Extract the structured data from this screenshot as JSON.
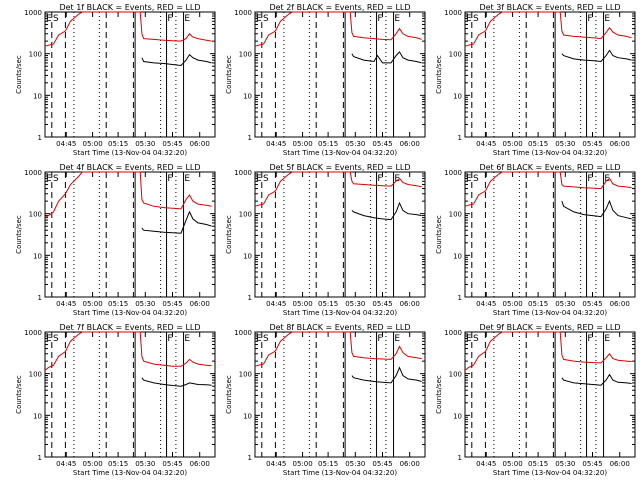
{
  "colors": {
    "events": "#000000",
    "lld": "#e00000",
    "axes": "#000000",
    "background": "#ffffff"
  },
  "shared": {
    "ylabel": "Counts/sec",
    "xlabel": "Start Time (13-Nov-04 04:32:20)",
    "x_ticks": [
      "04:45",
      "05:00",
      "05:15",
      "05:30",
      "05:45",
      "06:00"
    ],
    "y_ticks": [
      "1",
      "10",
      "100",
      "1000"
    ],
    "markers": {
      "E": "E",
      "S": "S",
      "F": "F"
    }
  },
  "chart_data": [
    {
      "type": "line",
      "title": "Det 1f BLACK = Events, RED = LLD",
      "yscale": "log",
      "ylim": [
        1,
        1000
      ],
      "series": [
        {
          "x": [
            0,
            0.02,
            0.05,
            0.08,
            0.12,
            0.15,
            0.2,
            0.22,
            0.3,
            0.45,
            0.56,
            0.57,
            0.58,
            0.64,
            0.7,
            0.75,
            0.8,
            0.83,
            0.85,
            0.87,
            0.9,
            0.95,
            0.98
          ],
          "values": [
            150,
            160,
            170,
            280,
            350,
            600,
            900,
            1000,
            1000,
            1000,
            1000,
            300,
            230,
            220,
            210,
            205,
            200,
            230,
            300,
            250,
            230,
            210,
            200
          ]
        },
        {
          "x": [
            0.57,
            0.58,
            0.64,
            0.7,
            0.75,
            0.8,
            0.83,
            0.85,
            0.87,
            0.9,
            0.95,
            0.98
          ],
          "values": [
            80,
            65,
            60,
            58,
            55,
            52,
            70,
            95,
            80,
            70,
            65,
            60
          ]
        }
      ]
    },
    {
      "type": "line",
      "title": "Det 2f BLACK = Events, RED = LLD",
      "yscale": "log",
      "ylim": [
        1,
        1000
      ],
      "series": [
        {
          "x": [
            0,
            0.02,
            0.05,
            0.08,
            0.12,
            0.15,
            0.2,
            0.22,
            0.3,
            0.45,
            0.56,
            0.57,
            0.58,
            0.64,
            0.7,
            0.75,
            0.8,
            0.83,
            0.85,
            0.87,
            0.9,
            0.95,
            0.98
          ],
          "values": [
            150,
            160,
            170,
            280,
            350,
            600,
            900,
            1000,
            1000,
            1000,
            1000,
            320,
            260,
            240,
            230,
            220,
            215,
            300,
            400,
            300,
            260,
            240,
            220
          ]
        },
        {
          "x": [
            0.57,
            0.58,
            0.64,
            0.7,
            0.72,
            0.75,
            0.8,
            0.83,
            0.85,
            0.87,
            0.9,
            0.95,
            0.98
          ],
          "values": [
            100,
            85,
            70,
            65,
            90,
            60,
            60,
            90,
            110,
            80,
            70,
            65,
            60
          ]
        }
      ]
    },
    {
      "type": "line",
      "title": "Det 3f BLACK = Events, RED = LLD",
      "yscale": "log",
      "ylim": [
        1,
        1000
      ],
      "series": [
        {
          "x": [
            0,
            0.02,
            0.05,
            0.08,
            0.12,
            0.15,
            0.2,
            0.22,
            0.3,
            0.45,
            0.56,
            0.57,
            0.58,
            0.64,
            0.7,
            0.75,
            0.8,
            0.83,
            0.85,
            0.87,
            0.9,
            0.95,
            0.98
          ],
          "values": [
            150,
            160,
            170,
            280,
            350,
            600,
            900,
            1000,
            1000,
            1000,
            1000,
            350,
            280,
            260,
            250,
            240,
            230,
            320,
            420,
            330,
            280,
            260,
            240
          ]
        },
        {
          "x": [
            0.57,
            0.58,
            0.64,
            0.7,
            0.75,
            0.8,
            0.83,
            0.85,
            0.87,
            0.9,
            0.95,
            0.98
          ],
          "values": [
            100,
            90,
            75,
            70,
            68,
            65,
            90,
            120,
            90,
            80,
            75,
            70
          ]
        }
      ]
    },
    {
      "type": "line",
      "title": "Det 4f BLACK = Events, RED = LLD",
      "yscale": "log",
      "ylim": [
        1,
        1000
      ],
      "series": [
        {
          "x": [
            0,
            0.02,
            0.05,
            0.08,
            0.12,
            0.15,
            0.2,
            0.22,
            0.3,
            0.45,
            0.56,
            0.57,
            0.58,
            0.64,
            0.7,
            0.75,
            0.8,
            0.83,
            0.85,
            0.87,
            0.9,
            0.95,
            0.98
          ],
          "values": [
            80,
            90,
            110,
            200,
            300,
            500,
            800,
            1000,
            1000,
            1000,
            1000,
            220,
            180,
            150,
            140,
            135,
            130,
            220,
            280,
            200,
            170,
            160,
            150
          ]
        },
        {
          "x": [
            0.57,
            0.58,
            0.64,
            0.7,
            0.75,
            0.8,
            0.83,
            0.85,
            0.87,
            0.9,
            0.95,
            0.98
          ],
          "values": [
            45,
            40,
            38,
            36,
            35,
            34,
            70,
            110,
            75,
            60,
            55,
            50
          ]
        }
      ]
    },
    {
      "type": "line",
      "title": "Det 5f BLACK = Events, RED = LLD",
      "yscale": "log",
      "ylim": [
        1,
        1000
      ],
      "series": [
        {
          "x": [
            0,
            0.02,
            0.05,
            0.08,
            0.12,
            0.15,
            0.2,
            0.22,
            0.3,
            0.45,
            0.56,
            0.57,
            0.58,
            0.64,
            0.7,
            0.75,
            0.8,
            0.83,
            0.85,
            0.87,
            0.9,
            0.95,
            0.98
          ],
          "values": [
            150,
            160,
            170,
            280,
            350,
            600,
            900,
            1000,
            1000,
            1000,
            1000,
            600,
            520,
            500,
            480,
            470,
            460,
            600,
            700,
            560,
            500,
            470,
            440
          ]
        },
        {
          "x": [
            0.57,
            0.58,
            0.64,
            0.7,
            0.75,
            0.8,
            0.83,
            0.85,
            0.87,
            0.9,
            0.95,
            0.98
          ],
          "values": [
            120,
            110,
            90,
            80,
            75,
            72,
            110,
            180,
            120,
            100,
            95,
            90
          ]
        }
      ]
    },
    {
      "type": "line",
      "title": "Det 6f BLACK = Events, RED = LLD",
      "yscale": "log",
      "ylim": [
        1,
        1000
      ],
      "series": [
        {
          "x": [
            0,
            0.02,
            0.05,
            0.08,
            0.12,
            0.15,
            0.2,
            0.22,
            0.3,
            0.45,
            0.56,
            0.57,
            0.58,
            0.64,
            0.7,
            0.75,
            0.8,
            0.83,
            0.85,
            0.87,
            0.9,
            0.95,
            0.98
          ],
          "values": [
            150,
            160,
            170,
            280,
            350,
            600,
            900,
            1000,
            1000,
            1000,
            1000,
            500,
            460,
            440,
            420,
            410,
            400,
            600,
            700,
            520,
            460,
            440,
            420
          ]
        },
        {
          "x": [
            0.57,
            0.58,
            0.64,
            0.7,
            0.75,
            0.8,
            0.83,
            0.85,
            0.87,
            0.9,
            0.95,
            0.98
          ],
          "values": [
            200,
            150,
            110,
            95,
            90,
            85,
            130,
            200,
            120,
            90,
            80,
            75
          ]
        }
      ]
    },
    {
      "type": "line",
      "title": "Det 7f BLACK = Events, RED = LLD",
      "yscale": "log",
      "ylim": [
        1,
        1000
      ],
      "series": [
        {
          "x": [
            0,
            0.02,
            0.05,
            0.08,
            0.12,
            0.15,
            0.2,
            0.22,
            0.3,
            0.45,
            0.56,
            0.57,
            0.58,
            0.64,
            0.7,
            0.75,
            0.8,
            0.83,
            0.85,
            0.87,
            0.9,
            0.95,
            0.98
          ],
          "values": [
            120,
            140,
            160,
            260,
            340,
            600,
            900,
            1000,
            1000,
            1000,
            1000,
            260,
            200,
            170,
            160,
            150,
            150,
            180,
            220,
            190,
            170,
            160,
            155
          ]
        },
        {
          "x": [
            0.57,
            0.58,
            0.64,
            0.7,
            0.75,
            0.8,
            0.83,
            0.85,
            0.87,
            0.9,
            0.95,
            0.98
          ],
          "values": [
            80,
            70,
            60,
            55,
            52,
            50,
            55,
            60,
            58,
            55,
            54,
            53
          ]
        }
      ]
    },
    {
      "type": "line",
      "title": "Det 8f BLACK = Events, RED = LLD",
      "yscale": "log",
      "ylim": [
        1,
        1000
      ],
      "series": [
        {
          "x": [
            0,
            0.02,
            0.05,
            0.08,
            0.12,
            0.15,
            0.2,
            0.22,
            0.3,
            0.45,
            0.56,
            0.57,
            0.58,
            0.64,
            0.7,
            0.75,
            0.8,
            0.83,
            0.85,
            0.87,
            0.9,
            0.95,
            0.98
          ],
          "values": [
            150,
            160,
            170,
            280,
            350,
            600,
            900,
            1000,
            1000,
            1000,
            1000,
            320,
            260,
            240,
            230,
            225,
            220,
            300,
            450,
            320,
            260,
            240,
            230
          ]
        },
        {
          "x": [
            0.57,
            0.58,
            0.64,
            0.7,
            0.75,
            0.8,
            0.83,
            0.85,
            0.87,
            0.9,
            0.95,
            0.98
          ],
          "values": [
            90,
            80,
            70,
            65,
            62,
            60,
            90,
            140,
            90,
            75,
            70,
            65
          ]
        }
      ]
    },
    {
      "type": "line",
      "title": "Det 9f BLACK = Events, RED = LLD",
      "yscale": "log",
      "ylim": [
        1,
        1000
      ],
      "series": [
        {
          "x": [
            0,
            0.02,
            0.05,
            0.08,
            0.12,
            0.15,
            0.2,
            0.22,
            0.3,
            0.45,
            0.56,
            0.57,
            0.58,
            0.64,
            0.7,
            0.75,
            0.8,
            0.83,
            0.85,
            0.87,
            0.9,
            0.95,
            0.98
          ],
          "values": [
            120,
            140,
            160,
            260,
            340,
            600,
            900,
            1000,
            1000,
            1000,
            1000,
            280,
            220,
            200,
            190,
            185,
            180,
            240,
            300,
            230,
            210,
            200,
            195
          ]
        },
        {
          "x": [
            0.57,
            0.58,
            0.64,
            0.7,
            0.75,
            0.8,
            0.83,
            0.85,
            0.87,
            0.9,
            0.95,
            0.98
          ],
          "values": [
            80,
            70,
            60,
            57,
            55,
            53,
            70,
            95,
            70,
            62,
            60,
            58
          ]
        }
      ]
    }
  ]
}
